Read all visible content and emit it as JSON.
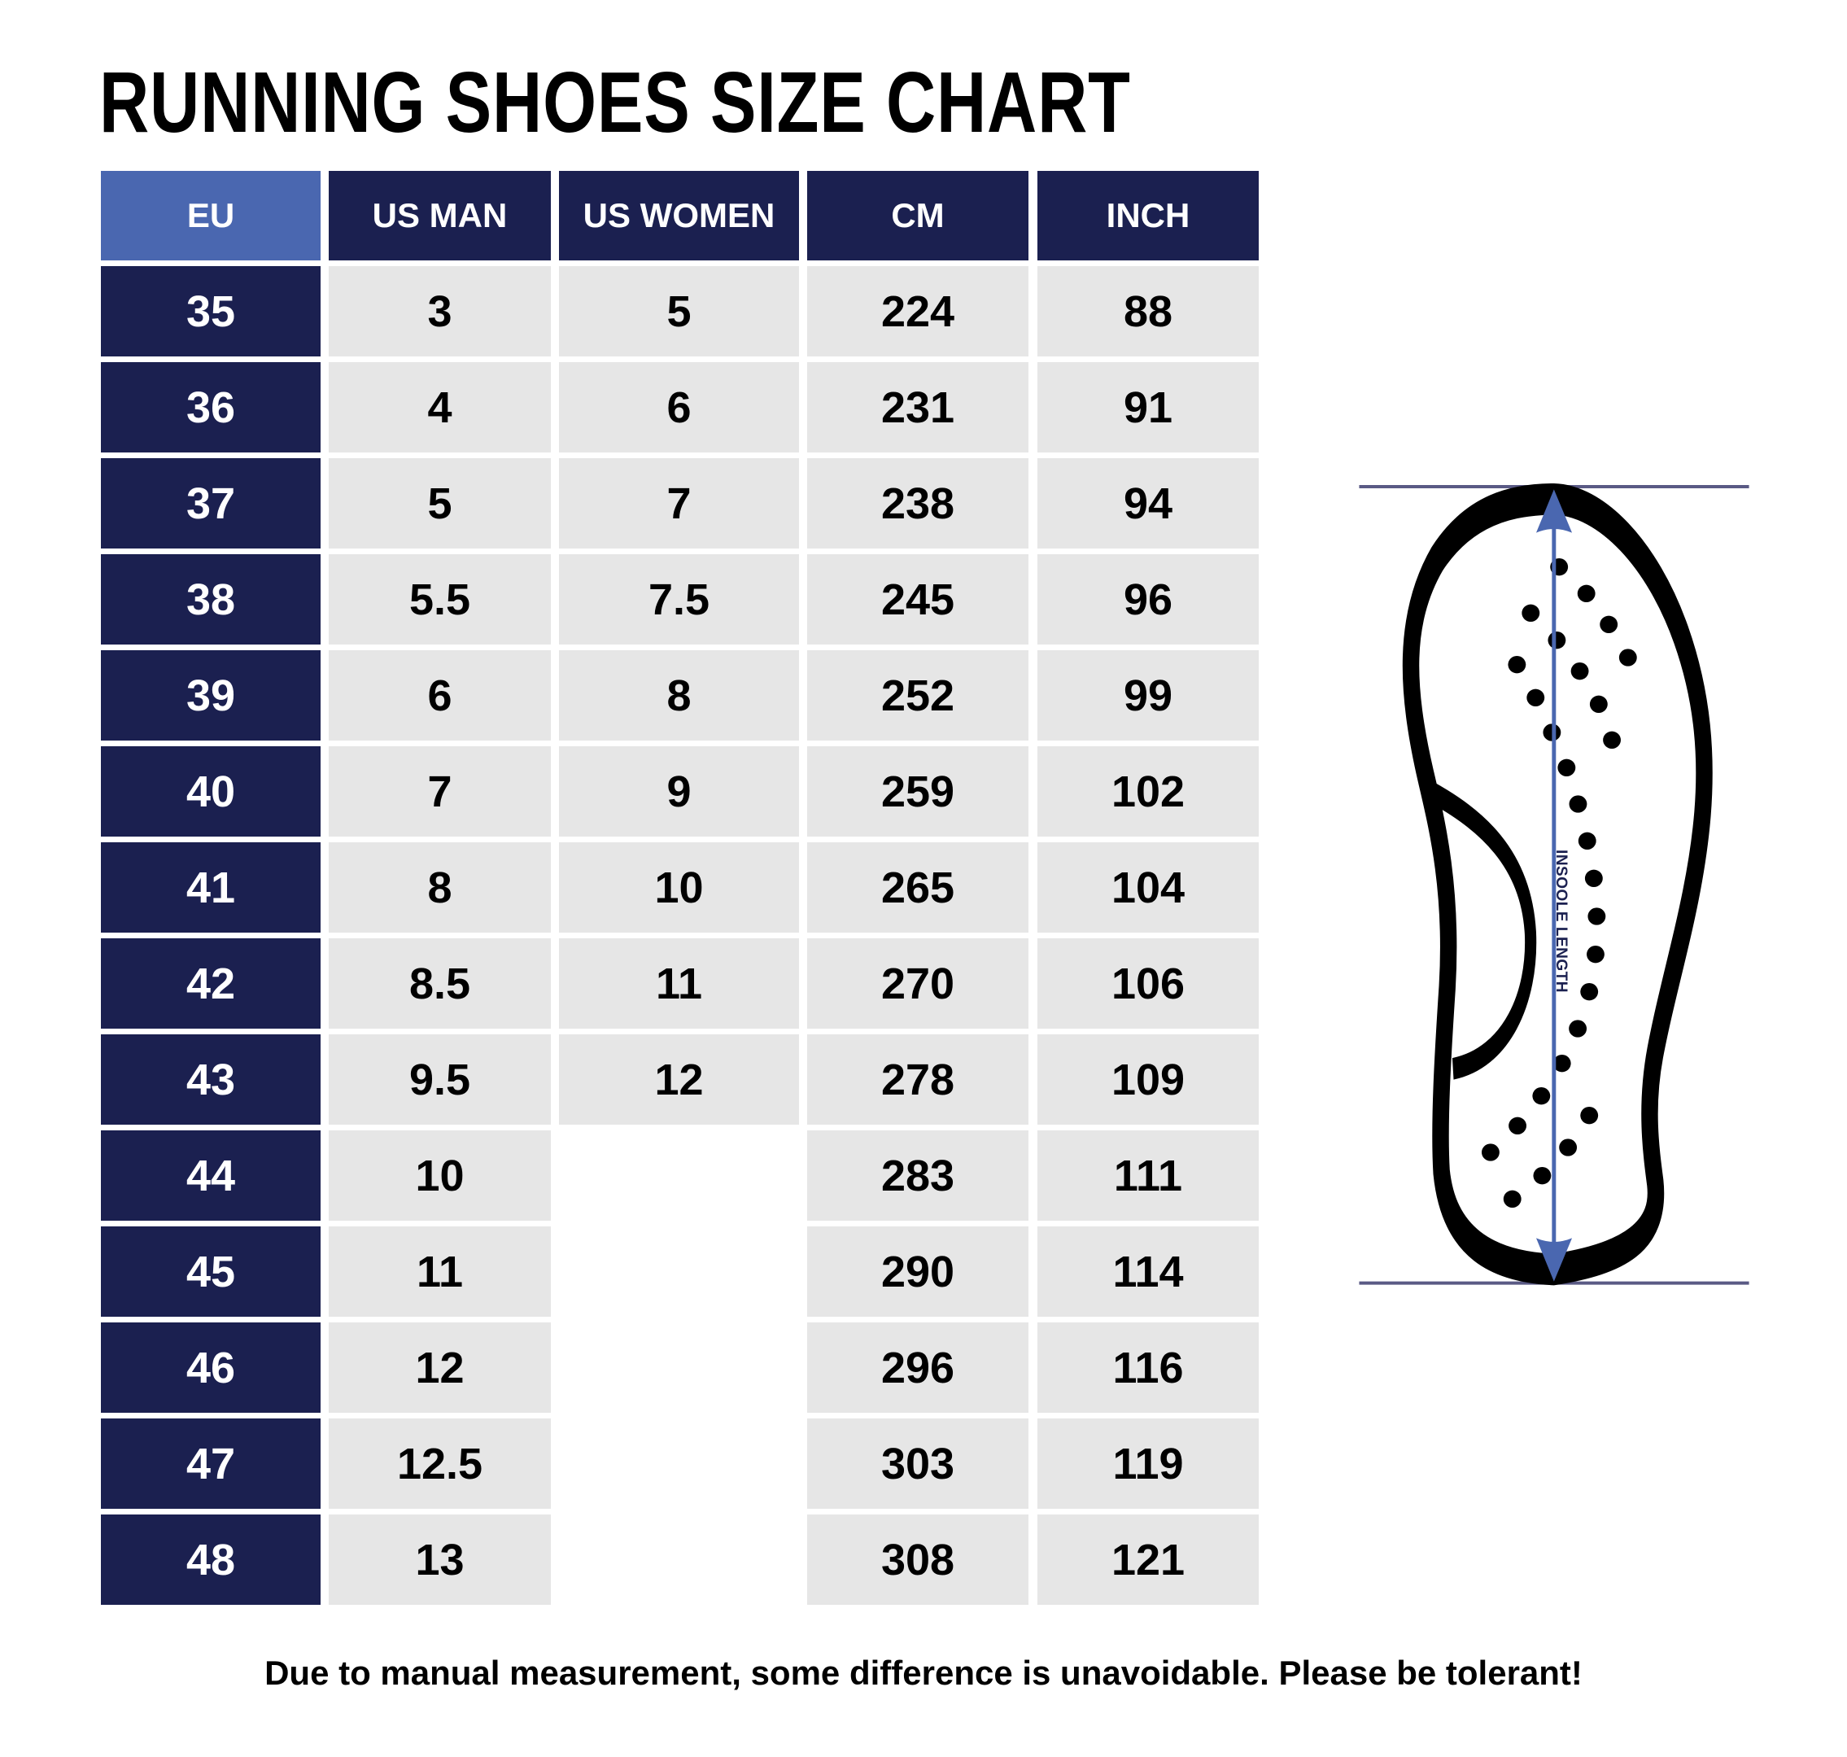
{
  "title": "RUNNING SHOES SIZE CHART",
  "columns": [
    "EU",
    "US MAN",
    "US WOMEN",
    "CM",
    "INCH"
  ],
  "rows": [
    [
      "35",
      "3",
      "5",
      "224",
      "88"
    ],
    [
      "36",
      "4",
      "6",
      "231",
      "91"
    ],
    [
      "37",
      "5",
      "7",
      "238",
      "94"
    ],
    [
      "38",
      "5.5",
      "7.5",
      "245",
      "96"
    ],
    [
      "39",
      "6",
      "8",
      "252",
      "99"
    ],
    [
      "40",
      "7",
      "9",
      "259",
      "102"
    ],
    [
      "41",
      "8",
      "10",
      "265",
      "104"
    ],
    [
      "42",
      "8.5",
      "11",
      "270",
      "106"
    ],
    [
      "43",
      "9.5",
      "12",
      "278",
      "109"
    ],
    [
      "44",
      "10",
      "",
      "283",
      "111"
    ],
    [
      "45",
      "11",
      "",
      "290",
      "114"
    ],
    [
      "46",
      "12",
      "",
      "296",
      "116"
    ],
    [
      "47",
      "12.5",
      "",
      "303",
      "119"
    ],
    [
      "48",
      "13",
      "",
      "308",
      "121"
    ]
  ],
  "diagram": {
    "label": "INSOOLE LENGTH",
    "icon": "shoe-insole-icon"
  },
  "footer": "Due to manual measurement, some difference is unavoidable. Please be tolerant!",
  "colors": {
    "navy": "#1b2050",
    "eu_header": "#4a67b0",
    "cell": "#e6e6e6",
    "arrow": "#4a67b0",
    "guide_line": "#5a5a85"
  }
}
